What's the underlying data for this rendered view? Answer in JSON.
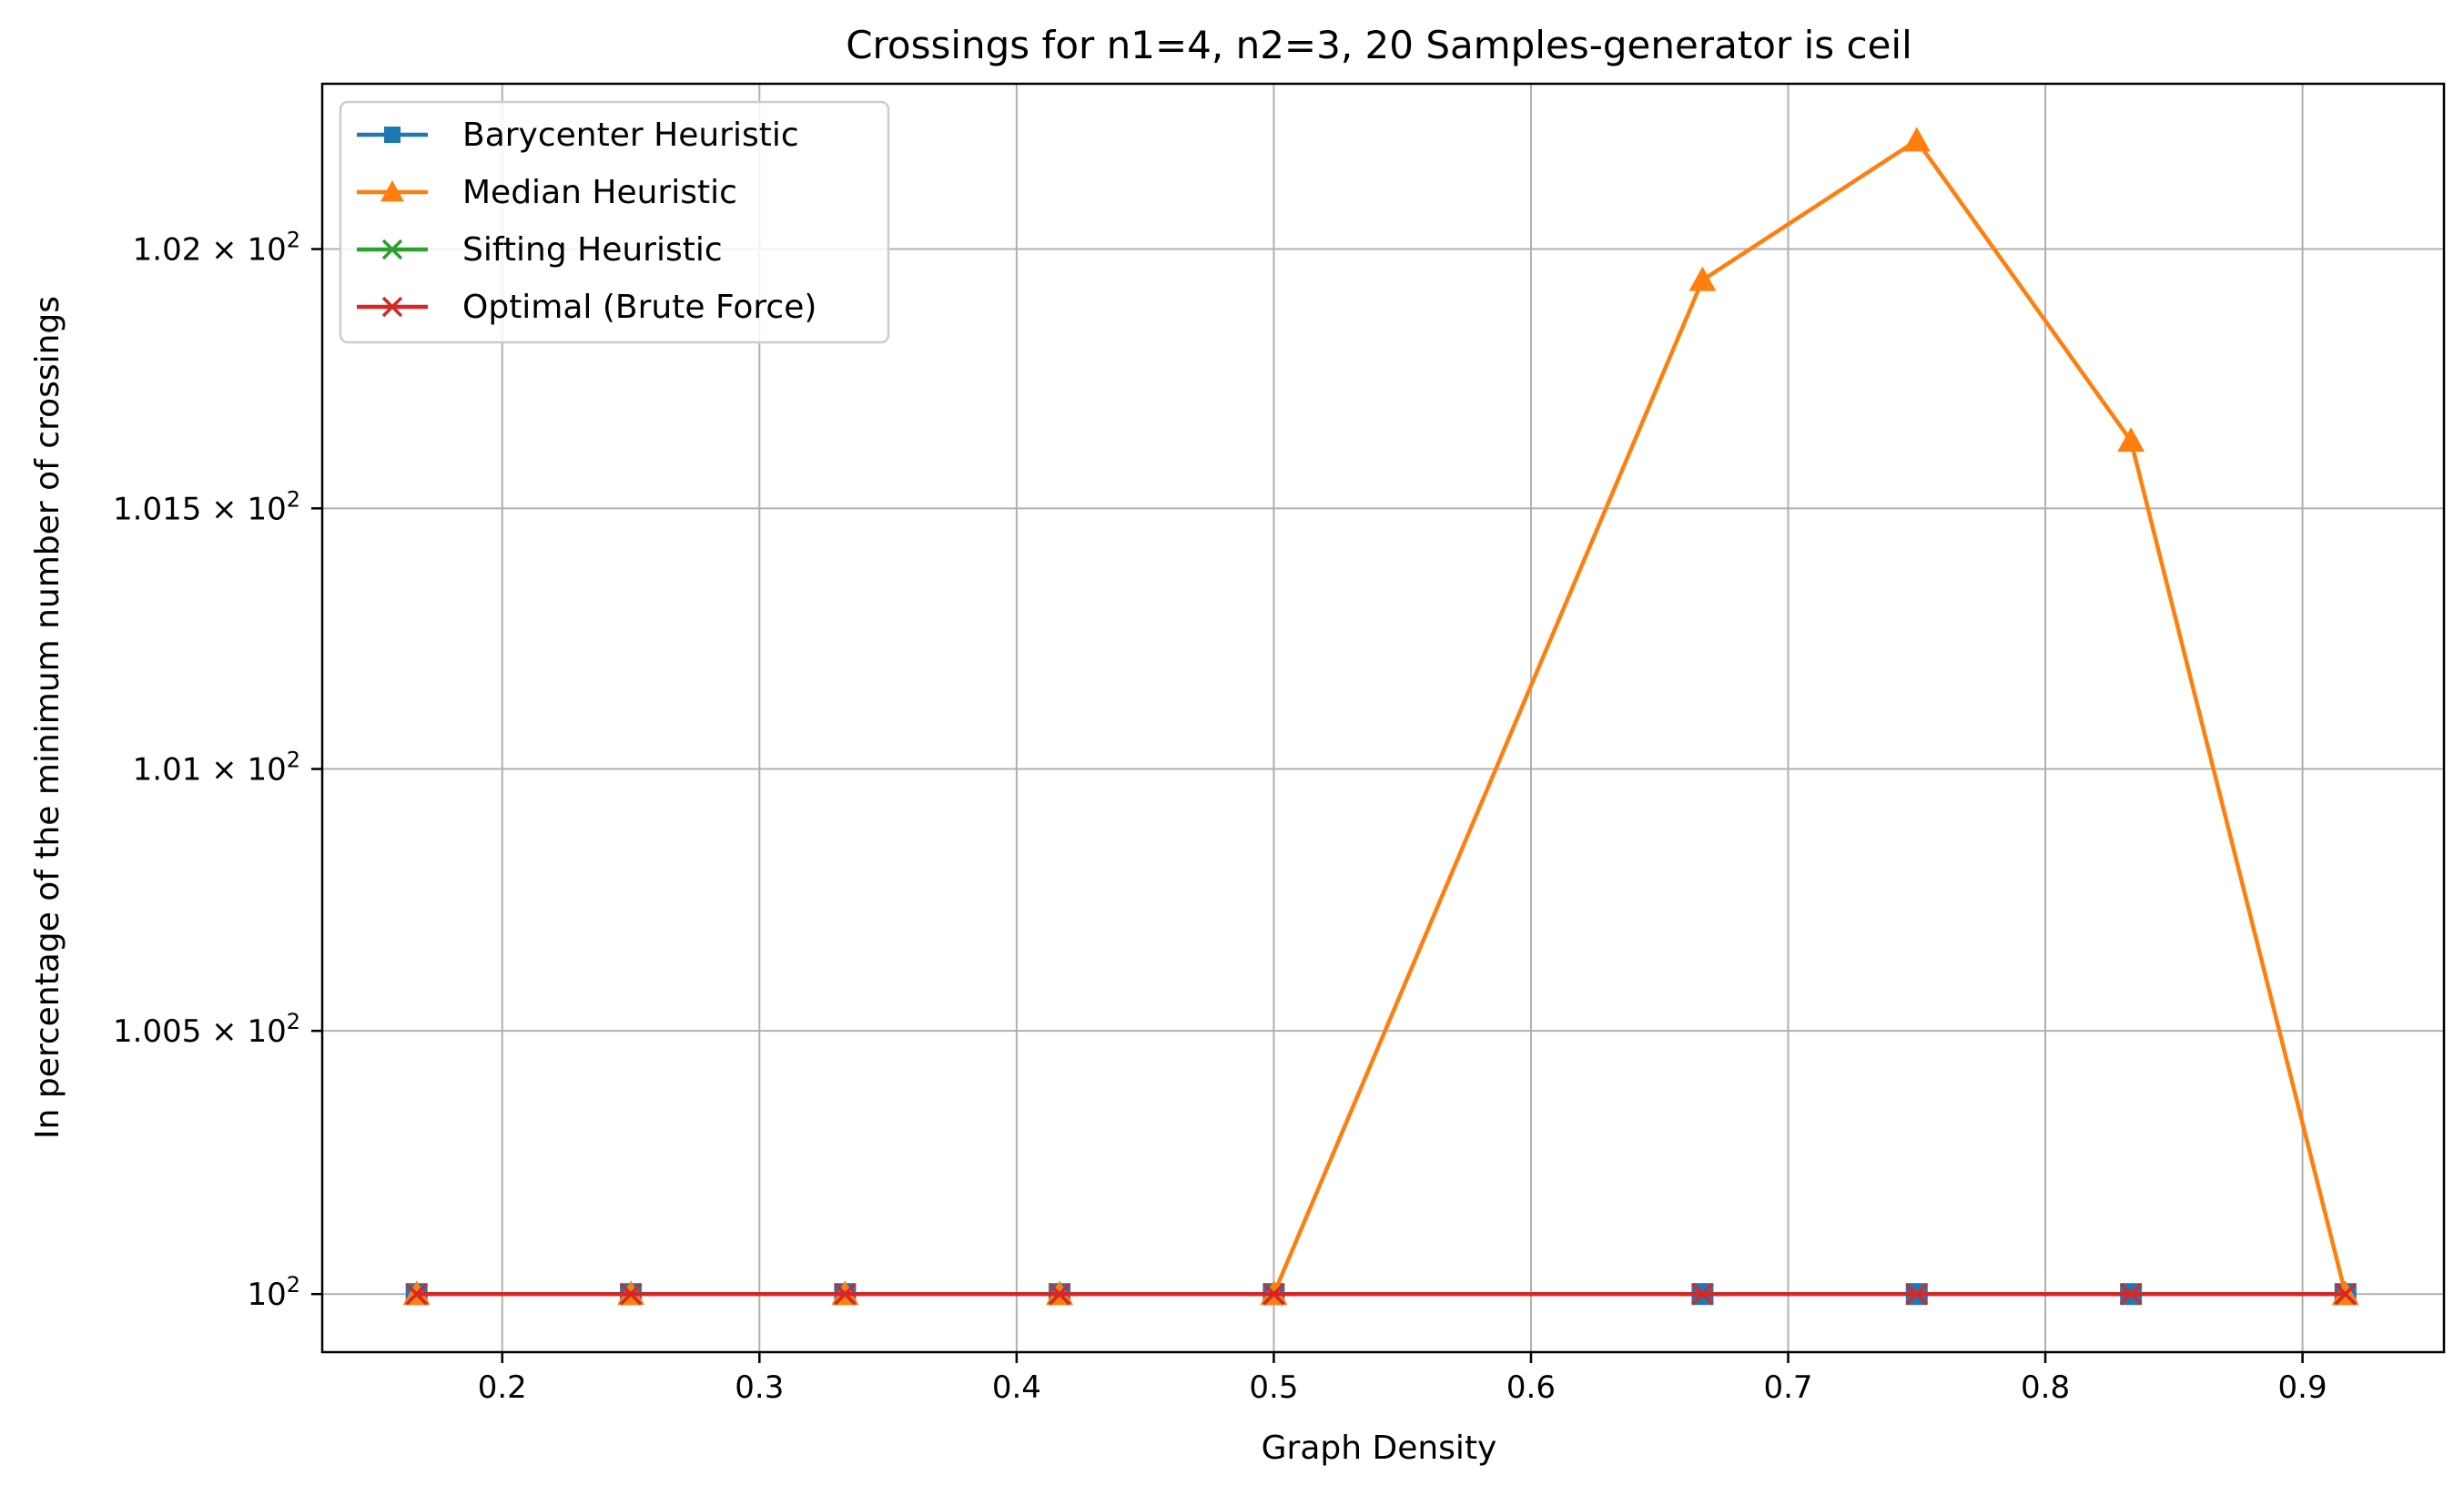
{
  "chart_data": {
    "type": "line",
    "title": "Crossings for n1=4, n2=3, 20 Samples-generator is ceil",
    "xlabel": "Graph Density",
    "ylabel": "In percentage of the minimum number of crossings",
    "xlim": [
      0.13,
      0.955
    ],
    "ylim": [
      99.89,
      102.32
    ],
    "y_scale": "log",
    "grid": "vertical",
    "legend_position": "top-left",
    "x_ticks": [
      0.2,
      0.3,
      0.4,
      0.5,
      0.6,
      0.7,
      0.8,
      0.9
    ],
    "x_tick_labels": [
      "0.2",
      "0.3",
      "0.4",
      "0.5",
      "0.6",
      "0.7",
      "0.8",
      "0.9"
    ],
    "y_ticks": [
      {
        "value": 100,
        "mantissa": "",
        "exponent": "2"
      },
      {
        "value": 100.5,
        "mantissa": "1.005",
        "exponent": "2"
      },
      {
        "value": 101,
        "mantissa": "1.01",
        "exponent": "2"
      },
      {
        "value": 101.5,
        "mantissa": "1.015",
        "exponent": "2"
      },
      {
        "value": 102,
        "mantissa": "1.02",
        "exponent": "2"
      }
    ],
    "x": [
      0.1667,
      0.25,
      0.3333,
      0.4167,
      0.5,
      0.6667,
      0.75,
      0.8333,
      0.9167
    ],
    "series": [
      {
        "name": "Barycenter Heuristic",
        "color": "#1f77b4",
        "marker": "square",
        "values": [
          100,
          100,
          100,
          100,
          100,
          100,
          100,
          100,
          100
        ]
      },
      {
        "name": "Median Heuristic",
        "color": "#ff7f0e",
        "marker": "triangle",
        "values": [
          100,
          100,
          100,
          100,
          100,
          101.94,
          102.21,
          101.63,
          100
        ]
      },
      {
        "name": "Sifting Heuristic",
        "color": "#2ca02c",
        "marker": "x",
        "values": [
          100,
          100,
          100,
          100,
          100,
          100,
          100,
          100,
          100
        ]
      },
      {
        "name": "Optimal (Brute Force)",
        "color": "#d62728",
        "marker": "x",
        "values": [
          100,
          100,
          100,
          100,
          100,
          100,
          100,
          100,
          100
        ]
      }
    ]
  }
}
